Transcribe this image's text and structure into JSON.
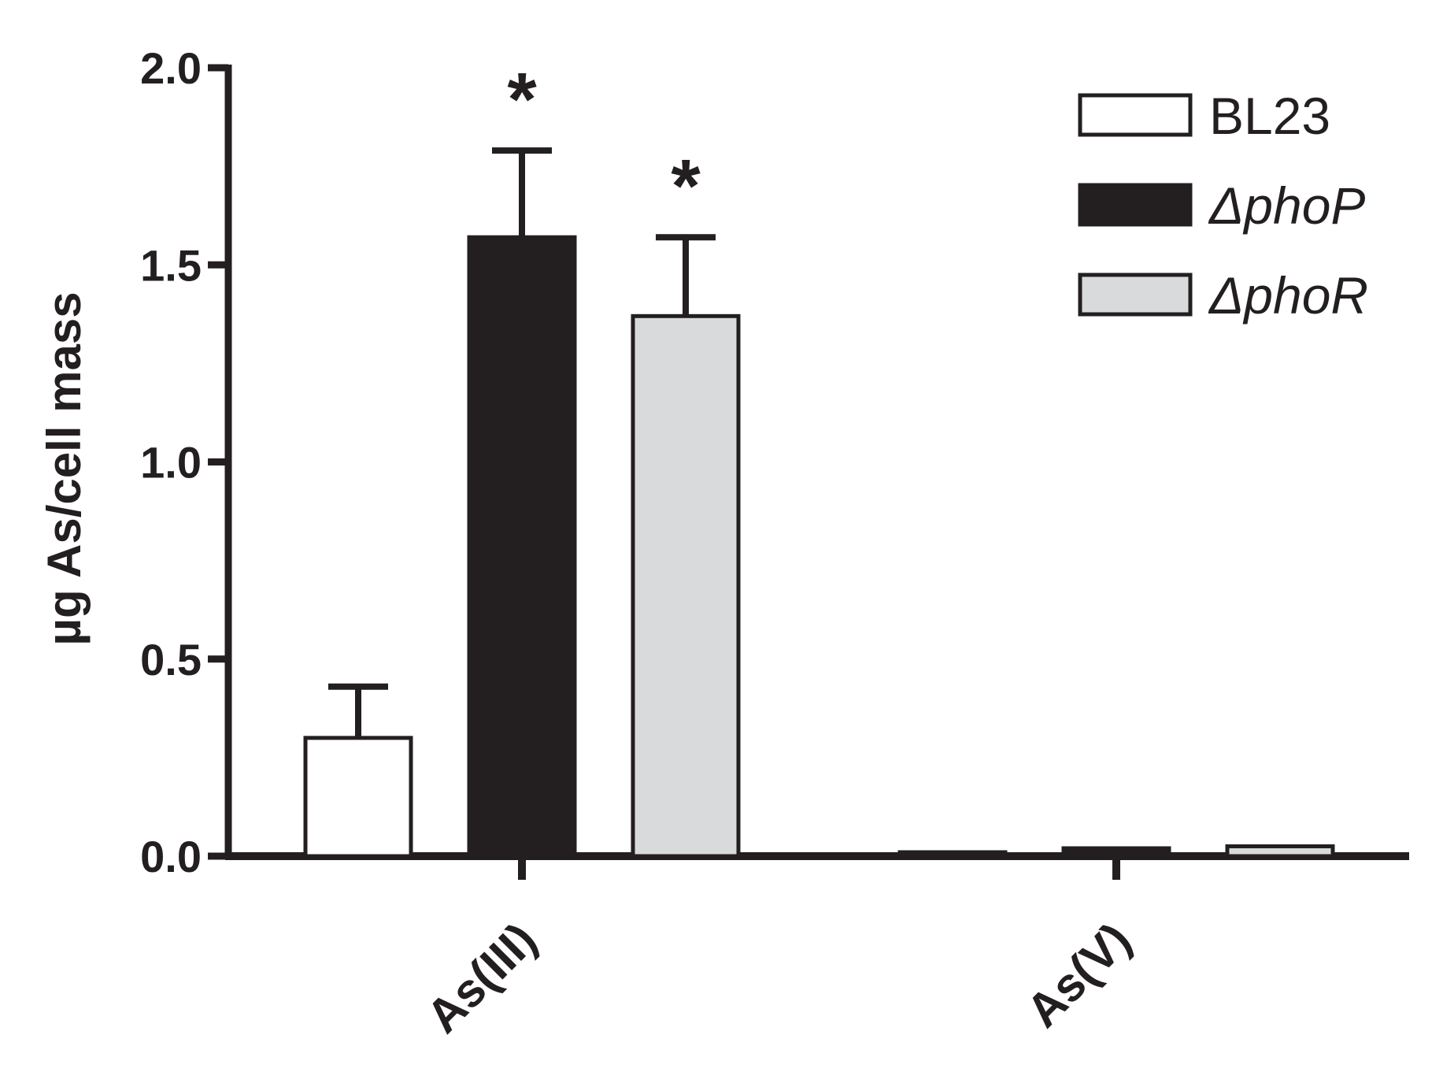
{
  "chart_data": {
    "type": "bar",
    "title": "",
    "xlabel": "",
    "ylabel": "µg As/cell mass",
    "ylim": [
      0,
      2.0
    ],
    "yticks": [
      "0.0",
      "0.5",
      "1.0",
      "1.5",
      "2.0"
    ],
    "ytick_values": [
      0,
      0.5,
      1.0,
      1.5,
      2.0
    ],
    "categories": [
      "As(III)",
      "As(V)"
    ],
    "series": [
      {
        "name": "BL23",
        "legend_italic": false,
        "color": "#ffffff",
        "values": [
          0.3,
          0.01
        ],
        "errors": [
          0.13,
          0.0
        ],
        "significance": [
          "",
          ""
        ]
      },
      {
        "name": "ΔphoP",
        "legend_italic": true,
        "color": "#231f20",
        "values": [
          1.57,
          0.02
        ],
        "errors": [
          0.22,
          0.0
        ],
        "significance": [
          "*",
          ""
        ]
      },
      {
        "name": "ΔphoR",
        "legend_italic": true,
        "color": "#d9dadb",
        "values": [
          1.37,
          0.025
        ],
        "errors": [
          0.2,
          0.0
        ],
        "significance": [
          "*",
          ""
        ]
      }
    ],
    "legend_position": "top-right",
    "grid": false
  }
}
